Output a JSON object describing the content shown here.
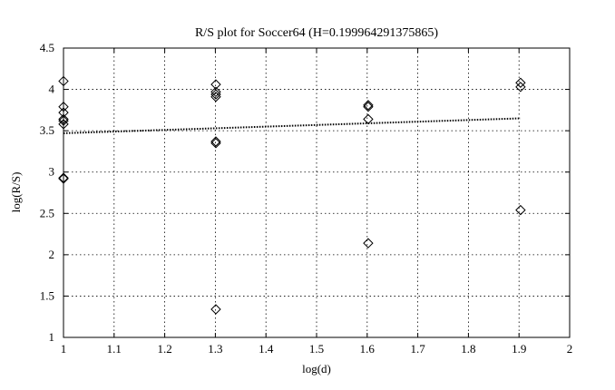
{
  "chart_data": {
    "type": "scatter",
    "title": "R/S plot for Soccer64 (H=0.199964291375865)",
    "xlabel": "log(d)",
    "ylabel": "log(R/S)",
    "xlim": [
      1,
      2
    ],
    "ylim": [
      1,
      4.5
    ],
    "x_ticks": [
      1,
      1.1,
      1.2,
      1.3,
      1.4,
      1.5,
      1.6,
      1.7,
      1.8,
      1.9,
      2
    ],
    "x_tick_labels": [
      "1",
      "1.1",
      "1.2",
      "1.3",
      "1.4",
      "1.5",
      "1.6",
      "1.7",
      "1.8",
      "1.9",
      "2"
    ],
    "y_ticks": [
      1,
      1.5,
      2,
      2.5,
      3,
      3.5,
      4,
      4.5
    ],
    "y_tick_labels": [
      "1",
      "1.5",
      "2",
      "2.5",
      "3",
      "3.5",
      "4",
      "4.5"
    ],
    "grid": true,
    "marker": "diamond-open",
    "points": [
      {
        "x": 1.0,
        "y": 4.1
      },
      {
        "x": 1.0,
        "y": 3.79
      },
      {
        "x": 1.0,
        "y": 3.72
      },
      {
        "x": 1.0,
        "y": 3.64
      },
      {
        "x": 1.0,
        "y": 3.62
      },
      {
        "x": 1.0,
        "y": 3.58
      },
      {
        "x": 1.0,
        "y": 2.93
      },
      {
        "x": 1.0,
        "y": 2.92
      },
      {
        "x": 1.301,
        "y": 4.06
      },
      {
        "x": 1.301,
        "y": 3.97
      },
      {
        "x": 1.301,
        "y": 3.94
      },
      {
        "x": 1.301,
        "y": 3.91
      },
      {
        "x": 1.301,
        "y": 3.37
      },
      {
        "x": 1.301,
        "y": 3.35
      },
      {
        "x": 1.301,
        "y": 1.34
      },
      {
        "x": 1.602,
        "y": 3.81
      },
      {
        "x": 1.602,
        "y": 3.79
      },
      {
        "x": 1.602,
        "y": 3.64
      },
      {
        "x": 1.602,
        "y": 2.14
      },
      {
        "x": 1.903,
        "y": 4.08
      },
      {
        "x": 1.903,
        "y": 4.03
      },
      {
        "x": 1.903,
        "y": 2.54
      }
    ],
    "fit_line": {
      "x": [
        1.0,
        1.903
      ],
      "y": [
        3.47,
        3.65
      ]
    }
  }
}
